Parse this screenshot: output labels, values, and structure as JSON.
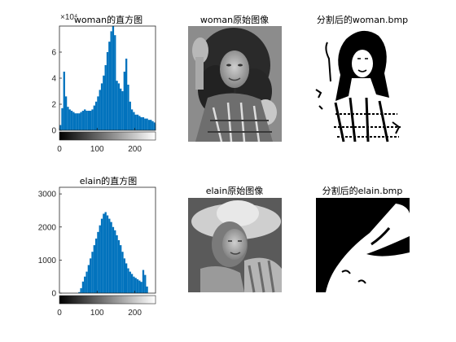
{
  "figure": {
    "panels": [
      {
        "id": "hist-woman",
        "kind": "histogram",
        "title": "woman的直方图"
      },
      {
        "id": "img-woman",
        "kind": "image",
        "title": "woman原始图像",
        "content": "grayscale portrait of a woman with curly hair, hand raised"
      },
      {
        "id": "seg-woman",
        "kind": "image",
        "title": "分割后的woman.bmp",
        "content": "binary threshold segmentation of the woman portrait"
      },
      {
        "id": "hist-elain",
        "kind": "histogram",
        "title": "elain的直方图"
      },
      {
        "id": "img-elain",
        "kind": "image",
        "title": "elain原始图像",
        "content": "grayscale portrait of a woman wearing a wide-brim hat"
      },
      {
        "id": "seg-elain",
        "kind": "image",
        "title": "分割后的elain.bmp",
        "content": "binary threshold segmentation of the elain portrait"
      }
    ]
  },
  "chart_data": [
    {
      "type": "bar",
      "title": "woman的直方图",
      "xlabel": "",
      "ylabel": "",
      "xlim": [
        0,
        255
      ],
      "ylim": [
        0,
        8
      ],
      "y_exponent_label": "×10⁴",
      "xticks": [
        0,
        100,
        200
      ],
      "yticks": [
        0,
        2,
        4,
        6
      ],
      "bar_color": "#0072BD",
      "x": [
        0,
        5,
        10,
        15,
        20,
        25,
        30,
        35,
        40,
        45,
        50,
        55,
        60,
        65,
        70,
        75,
        80,
        85,
        90,
        95,
        100,
        105,
        110,
        115,
        120,
        125,
        130,
        135,
        140,
        145,
        150,
        155,
        160,
        165,
        170,
        175,
        180,
        185,
        190,
        195,
        200,
        205,
        210,
        215,
        220,
        225,
        230,
        235,
        240,
        245,
        250,
        255
      ],
      "values": [
        0.4,
        1.7,
        4.5,
        2.6,
        1.8,
        1.6,
        1.5,
        1.4,
        1.3,
        1.3,
        1.3,
        1.4,
        1.5,
        1.6,
        1.5,
        1.5,
        1.5,
        1.6,
        1.9,
        2.2,
        2.6,
        3.1,
        3.6,
        4.2,
        5.0,
        6.0,
        6.8,
        7.6,
        8.0,
        7.3,
        3.8,
        3.6,
        3.2,
        3.0,
        4.5,
        5.5,
        3.5,
        2.2,
        1.6,
        1.4,
        1.2,
        1.2,
        1.1,
        1.0,
        1.0,
        0.9,
        0.9,
        0.8,
        0.8,
        0.7,
        0.6,
        0.5
      ],
      "grid": false,
      "colorbar": "grayscale ramp 0-255 under x axis"
    },
    {
      "type": "bar",
      "title": "elain的直方图",
      "xlabel": "",
      "ylabel": "",
      "xlim": [
        0,
        255
      ],
      "ylim": [
        0,
        3200
      ],
      "xticks": [
        0,
        100,
        200
      ],
      "yticks": [
        0,
        1000,
        2000,
        3000
      ],
      "bar_color": "#0072BD",
      "x": [
        0,
        5,
        10,
        15,
        20,
        25,
        30,
        35,
        40,
        45,
        50,
        55,
        60,
        65,
        70,
        75,
        80,
        85,
        90,
        95,
        100,
        105,
        110,
        115,
        120,
        125,
        130,
        135,
        140,
        145,
        150,
        155,
        160,
        165,
        170,
        175,
        180,
        185,
        190,
        195,
        200,
        205,
        210,
        215,
        220,
        225,
        230,
        235,
        240,
        245,
        250,
        255
      ],
      "values": [
        0,
        0,
        0,
        0,
        0,
        0,
        0,
        0,
        0,
        0,
        30,
        150,
        350,
        500,
        650,
        850,
        1050,
        1250,
        1450,
        1650,
        1850,
        2050,
        2250,
        2400,
        2450,
        2350,
        2250,
        2150,
        2000,
        1900,
        1750,
        1600,
        1450,
        1250,
        1050,
        900,
        750,
        650,
        580,
        500,
        460,
        420,
        380,
        340,
        700,
        550,
        200,
        0,
        0,
        0,
        0,
        0
      ],
      "grid": false,
      "colorbar": "grayscale ramp 0-255 under x axis"
    }
  ]
}
